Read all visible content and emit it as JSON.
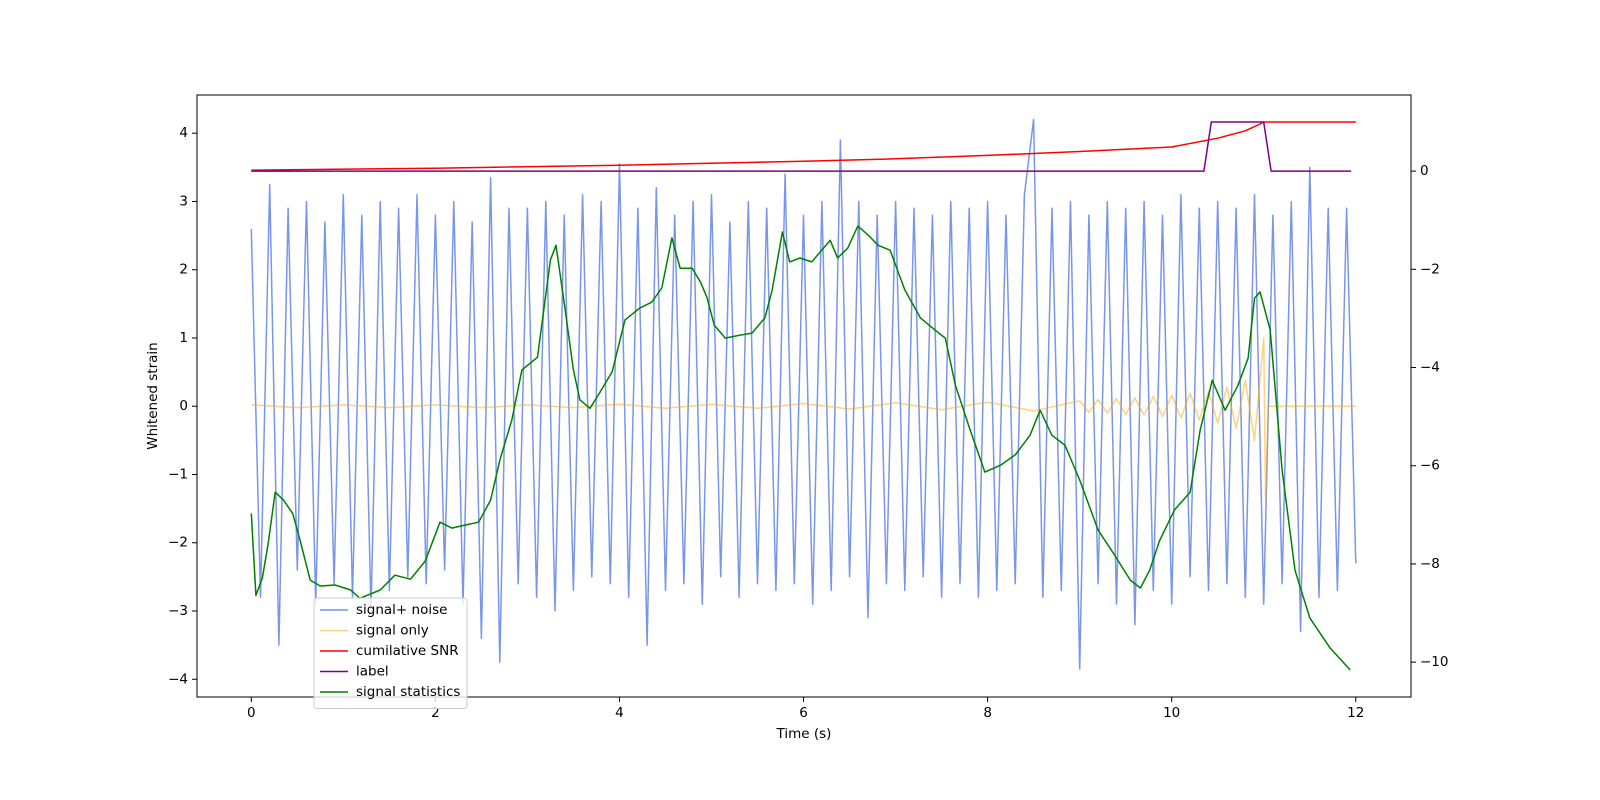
{
  "chart_data": {
    "type": "line",
    "xlabel": "Time (s)",
    "ylabel": "Whitened strain",
    "xlim": [
      -0.59,
      12.6
    ],
    "ylim": [
      -4.26,
      4.56
    ],
    "y2lim": [
      -10.71,
      1.55
    ],
    "xticks": [
      0,
      2,
      4,
      6,
      8,
      10,
      12
    ],
    "yticks": [
      {
        "value": -4,
        "label": "−4"
      },
      {
        "value": -3,
        "label": "−3"
      },
      {
        "value": -2,
        "label": "−2"
      },
      {
        "value": -1,
        "label": "−1"
      },
      0,
      1,
      2,
      3,
      4
    ],
    "y2ticks": [
      {
        "value": -10,
        "label": "−10"
      },
      {
        "value": -8,
        "label": "−8"
      },
      {
        "value": -6,
        "label": "−6"
      },
      {
        "value": -4,
        "label": "−4"
      },
      {
        "value": -2,
        "label": "−2"
      },
      0
    ],
    "legend": "lower left",
    "series": [
      {
        "name": "signal+ noise",
        "color": "#4169e1",
        "alpha": 0.7,
        "x": [
          0,
          0.1,
          0.2,
          0.3,
          0.4,
          0.5,
          0.6,
          0.7,
          0.8,
          0.9,
          1,
          1.1,
          1.2,
          1.3,
          1.4,
          1.5,
          1.6,
          1.7,
          1.8,
          1.9,
          2,
          2.1,
          2.2,
          2.3,
          2.4,
          2.5,
          2.6,
          2.7,
          2.8,
          2.9,
          3,
          3.1,
          3.2,
          3.3,
          3.4,
          3.5,
          3.6,
          3.7,
          3.8,
          3.9,
          4,
          4.1,
          4.2,
          4.3,
          4.4,
          4.5,
          4.6,
          4.7,
          4.8,
          4.9,
          5,
          5.1,
          5.2,
          5.3,
          5.4,
          5.5,
          5.6,
          5.7,
          5.8,
          5.9,
          6,
          6.1,
          6.2,
          6.3,
          6.4,
          6.5,
          6.6,
          6.7,
          6.8,
          6.9,
          7,
          7.1,
          7.2,
          7.3,
          7.4,
          7.5,
          7.6,
          7.7,
          7.8,
          7.9,
          8,
          8.1,
          8.2,
          8.3,
          8.4,
          8.5,
          8.6,
          8.7,
          8.8,
          8.9,
          9,
          9.1,
          9.2,
          9.3,
          9.4,
          9.5,
          9.6,
          9.7,
          9.8,
          9.9,
          10,
          10.1,
          10.2,
          10.3,
          10.4,
          10.5,
          10.6,
          10.7,
          10.8,
          10.9,
          11,
          11.1,
          11.2,
          11.3,
          11.4,
          11.5,
          11.6,
          11.7,
          11.8,
          11.9,
          12
        ],
        "values": [
          2.6,
          -2.8,
          3.25,
          -3.5,
          2.9,
          -2.4,
          3.0,
          -2.9,
          2.7,
          -2.6,
          3.1,
          -2.8,
          2.8,
          -3.0,
          3.0,
          -2.7,
          2.9,
          -2.5,
          3.1,
          -2.6,
          2.8,
          -2.4,
          3.0,
          -2.9,
          2.7,
          -3.4,
          3.35,
          -3.75,
          2.9,
          -2.6,
          2.9,
          -2.8,
          3.0,
          -3.0,
          2.8,
          -2.7,
          3.1,
          -2.5,
          3.0,
          -2.6,
          3.55,
          -2.8,
          2.9,
          -3.5,
          3.2,
          -2.7,
          2.8,
          -2.6,
          3.0,
          -2.9,
          3.1,
          -2.5,
          2.7,
          -2.8,
          3.0,
          -2.6,
          2.9,
          -2.7,
          3.4,
          -2.6,
          2.8,
          -2.9,
          3.0,
          -2.7,
          3.9,
          -2.5,
          3.0,
          -3.1,
          2.8,
          -2.6,
          3.0,
          -2.7,
          2.9,
          -2.5,
          2.8,
          -2.8,
          3.0,
          -2.6,
          2.9,
          -2.8,
          3.0,
          -2.7,
          2.8,
          -2.6,
          3.1,
          4.2,
          -2.8,
          2.9,
          -2.7,
          3.0,
          -3.85,
          2.8,
          -2.6,
          3.0,
          -2.9,
          2.9,
          -3.2,
          3.0,
          -2.7,
          2.8,
          -2.9,
          3.1,
          -2.5,
          2.9,
          -2.7,
          3.0,
          -2.6,
          2.9,
          -2.8,
          3.1,
          -2.9,
          2.8,
          -2.6,
          3.0,
          -3.3,
          3.5,
          -2.8,
          2.9,
          -2.7,
          2.9,
          -2.3
        ]
      },
      {
        "name": "signal only",
        "color": "orange",
        "alpha": 0.5,
        "x": [
          0,
          0.5,
          1,
          1.5,
          2,
          2.5,
          3,
          3.5,
          4,
          4.5,
          5,
          5.5,
          6,
          6.5,
          7,
          7.5,
          8,
          8.5,
          9,
          9.1,
          9.2,
          9.3,
          9.4,
          9.5,
          9.6,
          9.7,
          9.8,
          9.9,
          10,
          10.1,
          10.2,
          10.3,
          10.4,
          10.5,
          10.6,
          10.7,
          10.8,
          10.9,
          11,
          11.02,
          11.05,
          12
        ],
        "values": [
          0.02,
          -0.02,
          0.02,
          -0.02,
          0.02,
          -0.02,
          0.02,
          -0.02,
          0.03,
          -0.03,
          0.03,
          -0.03,
          0.04,
          -0.04,
          0.05,
          -0.05,
          0.06,
          -0.07,
          0.08,
          -0.09,
          0.1,
          -0.1,
          0.11,
          -0.12,
          0.12,
          -0.13,
          0.14,
          -0.15,
          0.16,
          -0.17,
          0.19,
          -0.2,
          0.22,
          -0.25,
          0.28,
          -0.32,
          0.38,
          -0.5,
          1.0,
          -1.4,
          0,
          0
        ]
      },
      {
        "name": "cumilative SNR",
        "color": "red",
        "axis": "y2",
        "x": [
          0,
          2,
          4,
          6,
          7,
          8,
          9,
          10,
          10.5,
          10.8,
          10.95,
          11,
          12
        ],
        "values": [
          0.02,
          0.06,
          0.12,
          0.2,
          0.25,
          0.32,
          0.4,
          0.49,
          0.67,
          0.82,
          0.95,
          1.0,
          1.0
        ]
      },
      {
        "name": "label",
        "color": "purple",
        "axis": "y2",
        "x": [
          0,
          10.35,
          10.43,
          11.0,
          11.08,
          11.95
        ],
        "values": [
          0,
          0,
          1,
          1,
          0,
          0
        ]
      },
      {
        "name": "signal statistics",
        "color": "green",
        "axis": "y2",
        "x": [
          0,
          0.05,
          0.12,
          0.18,
          0.26,
          0.35,
          0.45,
          0.53,
          0.64,
          0.75,
          0.91,
          1.08,
          1.18,
          1.4,
          1.56,
          1.73,
          1.89,
          2.05,
          2.18,
          2.32,
          2.47,
          2.6,
          2.7,
          2.83,
          2.94,
          3.11,
          3.25,
          3.31,
          3.41,
          3.5,
          3.57,
          3.68,
          3.77,
          3.92,
          4.06,
          4.22,
          4.35,
          4.46,
          4.57,
          4.66,
          4.79,
          4.88,
          4.95,
          5.03,
          5.15,
          5.31,
          5.44,
          5.58,
          5.66,
          5.77,
          5.85,
          5.96,
          6.09,
          6.18,
          6.29,
          6.37,
          6.48,
          6.59,
          6.7,
          6.81,
          6.94,
          7.1,
          7.27,
          7.43,
          7.54,
          7.65,
          7.81,
          7.97,
          8.14,
          8.3,
          8.46,
          8.57,
          8.7,
          8.84,
          9.0,
          9.2,
          9.38,
          9.55,
          9.66,
          9.76,
          9.87,
          10.03,
          10.2,
          10.31,
          10.44,
          10.58,
          10.72,
          10.83,
          10.9,
          10.96,
          11.07,
          11.2,
          11.34,
          11.5,
          11.72,
          11.94
        ],
        "values": [
          -6.97,
          -8.64,
          -8.29,
          -7.62,
          -6.54,
          -6.7,
          -6.97,
          -7.52,
          -8.33,
          -8.45,
          -8.43,
          -8.53,
          -8.7,
          -8.53,
          -8.23,
          -8.31,
          -7.94,
          -7.15,
          -7.27,
          -7.21,
          -7.15,
          -6.7,
          -5.89,
          -5.07,
          -4.05,
          -3.79,
          -1.81,
          -1.51,
          -2.83,
          -4.05,
          -4.66,
          -4.83,
          -4.56,
          -4.09,
          -3.03,
          -2.79,
          -2.67,
          -2.38,
          -1.36,
          -1.98,
          -1.98,
          -2.26,
          -2.57,
          -3.14,
          -3.4,
          -3.34,
          -3.3,
          -2.99,
          -2.42,
          -1.24,
          -1.85,
          -1.77,
          -1.85,
          -1.65,
          -1.41,
          -1.77,
          -1.57,
          -1.12,
          -1.3,
          -1.51,
          -1.61,
          -2.42,
          -2.99,
          -3.24,
          -3.4,
          -4.36,
          -5.27,
          -6.13,
          -5.99,
          -5.78,
          -5.38,
          -4.87,
          -5.38,
          -5.58,
          -6.29,
          -7.31,
          -7.82,
          -8.33,
          -8.49,
          -8.13,
          -7.52,
          -6.9,
          -6.54,
          -5.27,
          -4.26,
          -4.87,
          -4.36,
          -3.81,
          -2.59,
          -2.46,
          -3.24,
          -6.09,
          -8.13,
          -9.1,
          -9.71,
          -10.16
        ]
      }
    ]
  }
}
